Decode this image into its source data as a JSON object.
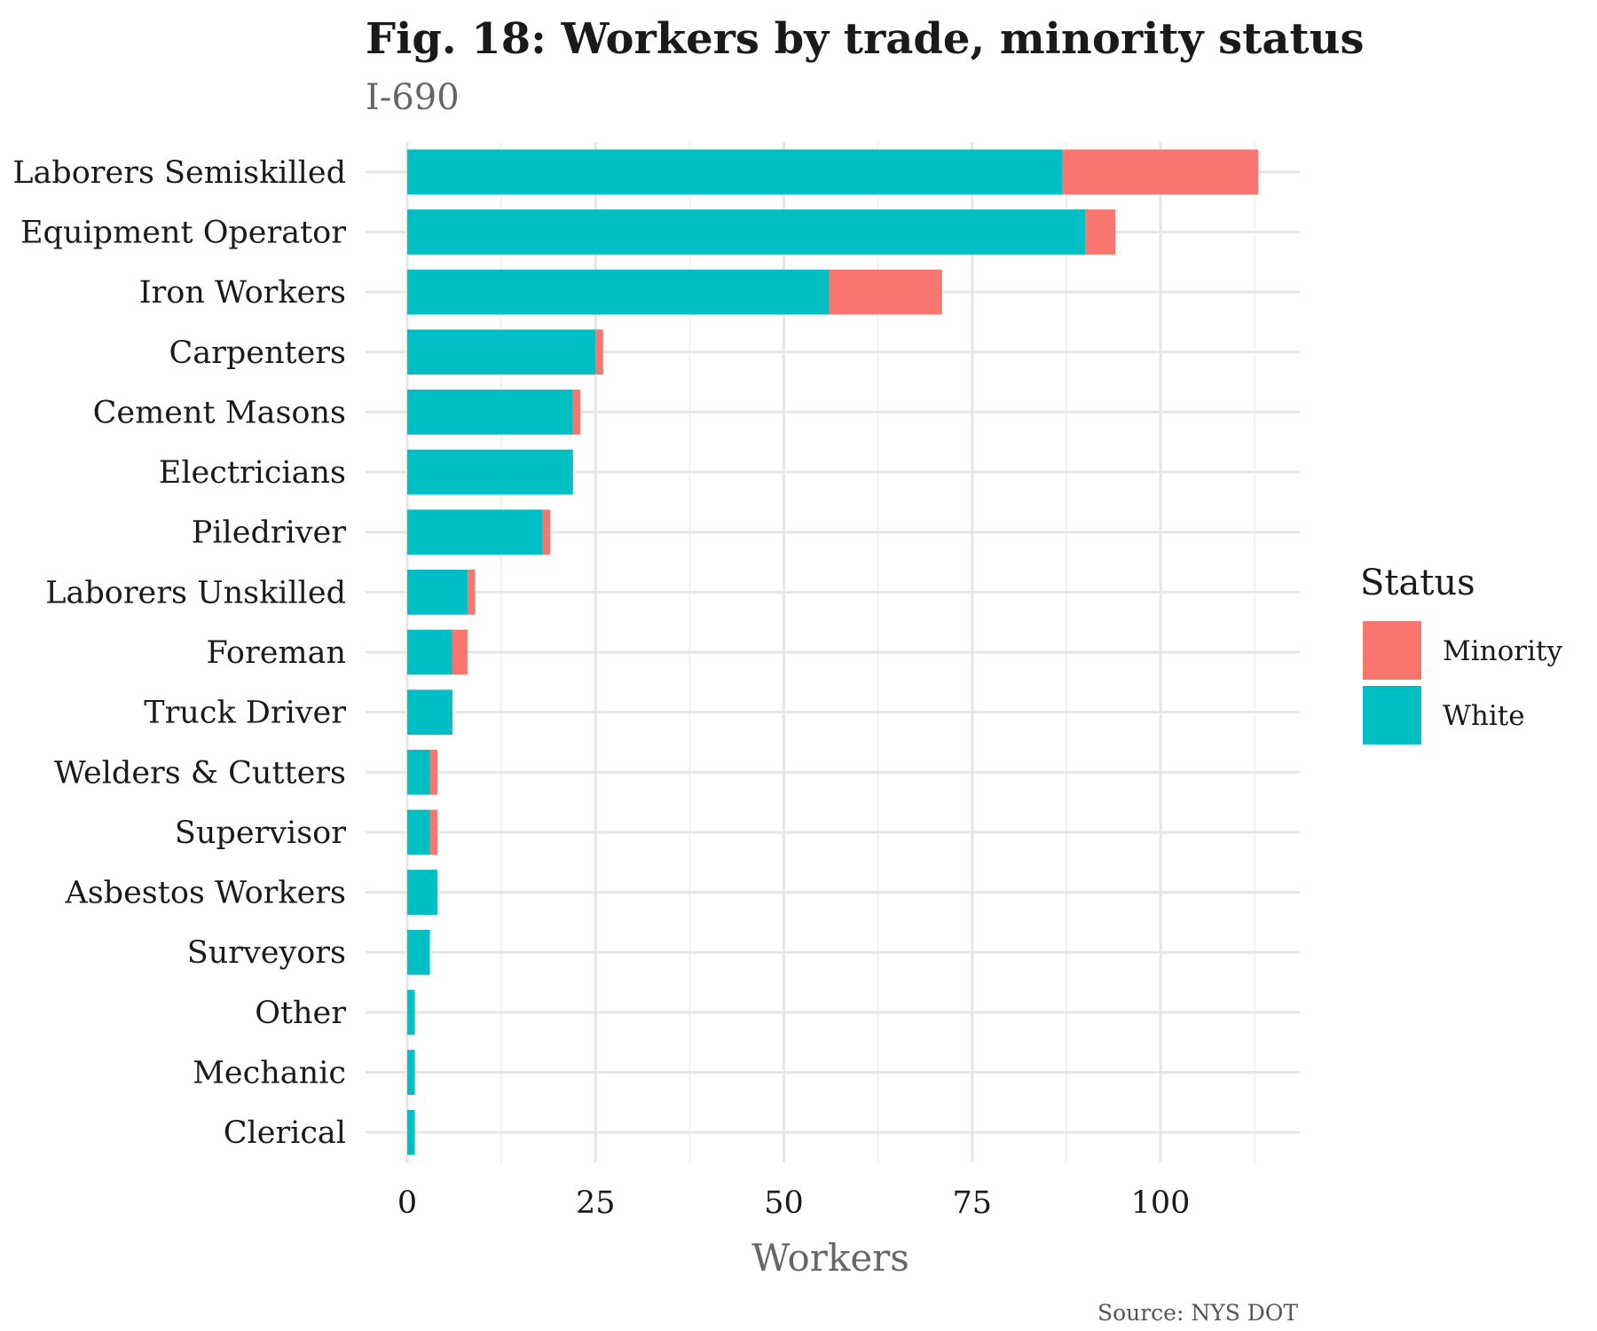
{
  "chart_data": {
    "type": "bar",
    "orientation": "horizontal",
    "stacked": true,
    "title": "Fig. 18: Workers by trade, minority status",
    "subtitle": "I-690",
    "xlabel": "Workers",
    "ylabel": "",
    "caption": "Source: NYS DOT",
    "xlim": [
      0,
      118
    ],
    "xticks": [
      0,
      25,
      50,
      75,
      100
    ],
    "grid": true,
    "legend": {
      "title": "Status",
      "position": "right",
      "entries": [
        {
          "name": "Minority",
          "color": "#F8766D"
        },
        {
          "name": "White",
          "color": "#00BFC4"
        }
      ]
    },
    "categories": [
      "Laborers Semiskilled",
      "Equipment Operator",
      "Iron Workers",
      "Carpenters",
      "Cement Masons",
      "Electricians",
      "Piledriver",
      "Laborers Unskilled",
      "Foreman",
      "Truck Driver",
      "Welders & Cutters",
      "Supervisor",
      "Asbestos Workers",
      "Surveyors",
      "Other",
      "Mechanic",
      "Clerical"
    ],
    "series": [
      {
        "name": "White",
        "color": "#00BFC4",
        "values": [
          87,
          90,
          56,
          25,
          22,
          22,
          18,
          8,
          6,
          6,
          3,
          3,
          4,
          3,
          1,
          1,
          1
        ]
      },
      {
        "name": "Minority",
        "color": "#F8766D",
        "values": [
          26,
          4,
          15,
          1,
          1,
          0,
          1,
          1,
          2,
          0,
          1,
          1,
          0,
          0,
          0,
          0,
          0
        ]
      }
    ]
  }
}
